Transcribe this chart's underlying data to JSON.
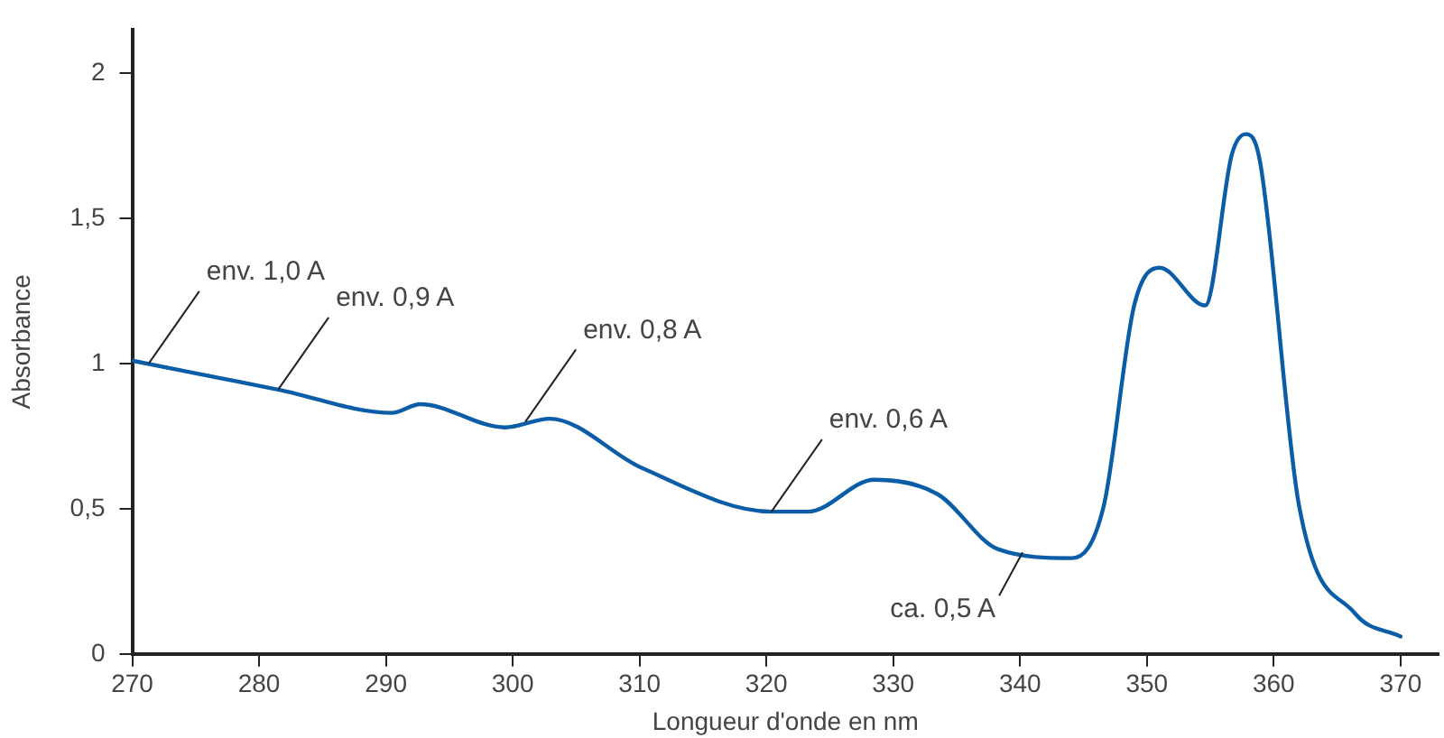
{
  "chart_data": {
    "type": "line",
    "xlabel": "Longueur d'onde en nm",
    "ylabel": "Absorbance",
    "x": [
      270,
      281.5,
      290.5,
      292.7,
      299.4,
      302.9,
      310.2,
      320.4,
      323.3,
      328.5,
      333.5,
      338.3,
      344.1,
      346.6,
      349,
      351,
      354.6,
      356.7,
      357.8,
      358.9,
      362,
      366.4,
      370
    ],
    "series": [
      {
        "color": "#0b5da8",
        "values": [
          1.01,
          0.91,
          0.83,
          0.86,
          0.78,
          0.81,
          0.64,
          0.49,
          0.49,
          0.6,
          0.55,
          0.36,
          0.33,
          0.51,
          1.2,
          1.33,
          1.2,
          1.72,
          1.79,
          1.7,
          0.51,
          0.14,
          0.06
        ]
      }
    ],
    "xlim": [
      270,
      373
    ],
    "xticks": [
      270,
      280,
      290,
      300,
      310,
      320,
      330,
      340,
      350,
      360,
      370
    ],
    "ylim": [
      0,
      2.15
    ],
    "yticks": [
      0,
      {
        "value": 0.5,
        "label": "0,5"
      },
      1,
      {
        "value": 1.5,
        "label": "1,5"
      },
      2
    ],
    "annotations": [
      {
        "text": "env. 1,0 A",
        "x": 271.3,
        "y": 1.0
      },
      {
        "text": "env. 0,9 A",
        "x": 281.5,
        "y": 0.91
      },
      {
        "text": "env. 0,8 A",
        "x": 301,
        "y": 0.8
      },
      {
        "text": "env. 0,6 A",
        "x": 320.4,
        "y": 0.49
      },
      {
        "text": "ca. 0,5 A",
        "x": 340.2,
        "y": 0.35
      }
    ],
    "grid": false,
    "legend": false,
    "marker": "none",
    "line_style": "solid"
  }
}
